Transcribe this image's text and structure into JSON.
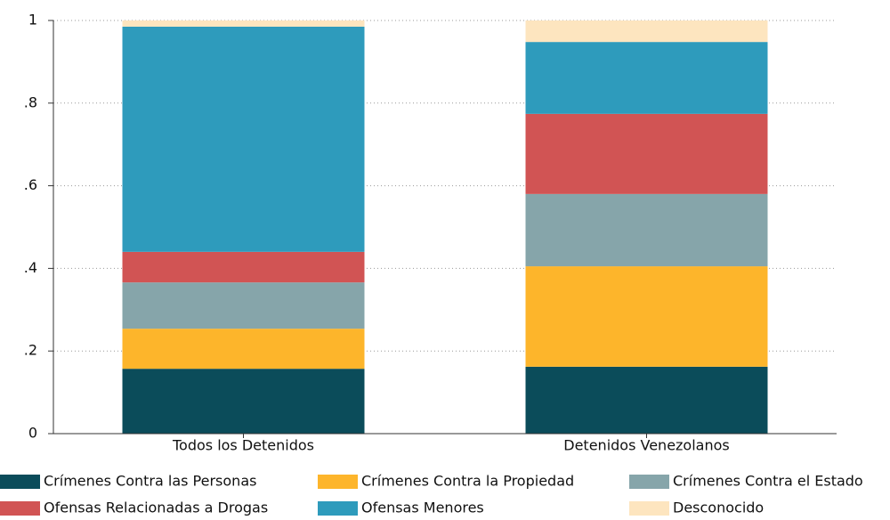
{
  "chart_data": {
    "type": "stacked_bar",
    "categories": [
      "Todos los Detenidos",
      "Detenidos Venezolanos"
    ],
    "series": [
      {
        "name": "Crímenes Contra las Personas",
        "color": "#0b4c5a",
        "values": [
          0.157,
          0.162
        ]
      },
      {
        "name": "Crímenes Contra la Propiedad",
        "color": "#fdb52b",
        "values": [
          0.097,
          0.243
        ]
      },
      {
        "name": "Crímenes Contra el Estado",
        "color": "#86a5aa",
        "values": [
          0.112,
          0.175
        ]
      },
      {
        "name": "Ofensas Relacionadas a Drogas",
        "color": "#d15454",
        "values": [
          0.074,
          0.194
        ]
      },
      {
        "name": "Ofensas Menores",
        "color": "#2e9bbc",
        "values": [
          0.545,
          0.174
        ]
      },
      {
        "name": "Desconocido",
        "color": "#fde5bf",
        "values": [
          0.015,
          0.052
        ]
      }
    ],
    "ylim": [
      0,
      1
    ],
    "yticks": [
      0,
      {
        "value": 0.2,
        "label": ".2"
      },
      {
        "value": 0.4,
        "label": ".4"
      },
      {
        "value": 0.6,
        "label": ".6"
      },
      {
        "value": 0.8,
        "label": ".8"
      },
      1
    ],
    "grid": true
  }
}
